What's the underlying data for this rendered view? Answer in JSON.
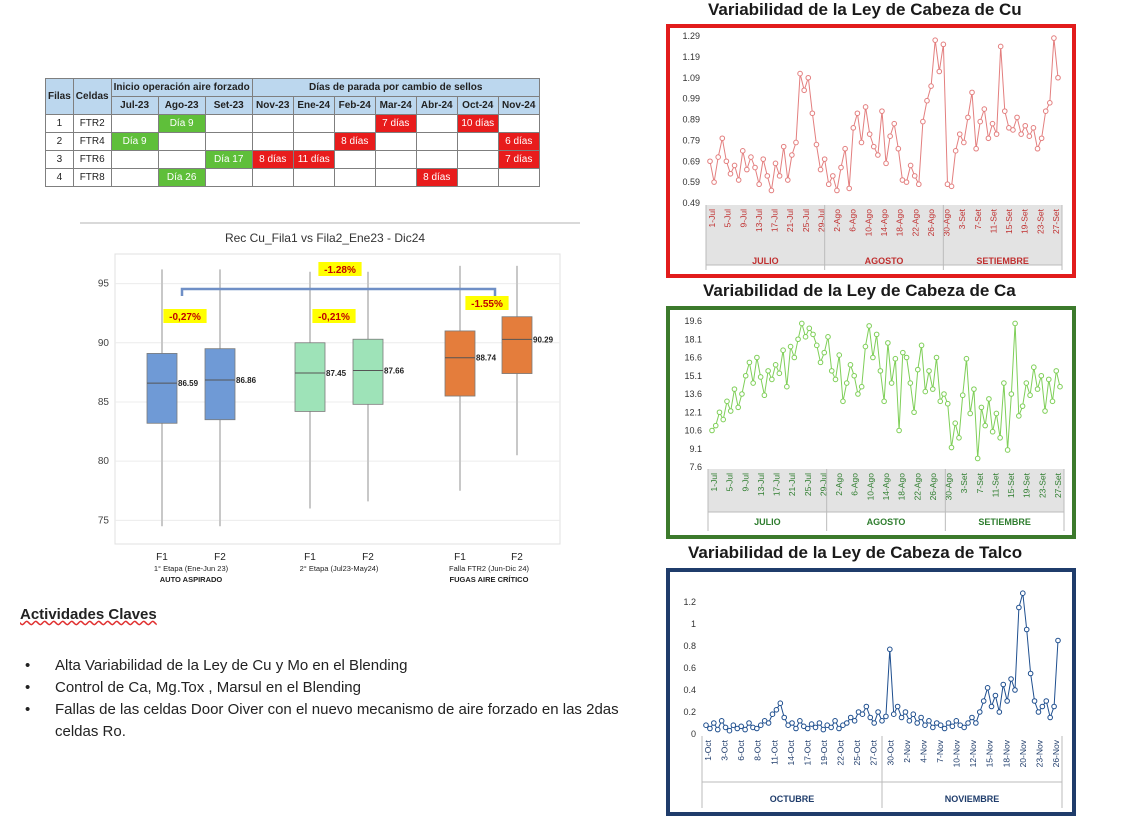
{
  "table": {
    "head1": {
      "filas": "Filas",
      "celdas": "Celdas",
      "inicio": "Inicio operación aire forzado",
      "dias": "Días de parada por cambio de sellos"
    },
    "months": [
      "Jul-23",
      "Ago-23",
      "Set-23",
      "Nov-23",
      "Ene-24",
      "Feb-24",
      "Mar-24",
      "Abr-24",
      "Oct-24",
      "Nov-24"
    ],
    "rows": [
      {
        "fila": "1",
        "celda": "FTR2",
        "cells": [
          "",
          "Día 9",
          "",
          "",
          "",
          "",
          "7 días",
          "",
          "10 días",
          ""
        ],
        "colors": [
          "",
          "g",
          "",
          "",
          "",
          "",
          "r",
          "",
          "r",
          ""
        ]
      },
      {
        "fila": "2",
        "celda": "FTR4",
        "cells": [
          "Día 9",
          "",
          "",
          "",
          "",
          "8 días",
          "",
          "",
          "",
          "6 días"
        ],
        "colors": [
          "g",
          "",
          "",
          "",
          "",
          "r",
          "",
          "",
          "",
          "r"
        ]
      },
      {
        "fila": "3",
        "celda": "FTR6",
        "cells": [
          "",
          "",
          "Día 17",
          "8 días",
          "11 días",
          "",
          "",
          "",
          "",
          "7 días"
        ],
        "colors": [
          "",
          "",
          "g",
          "r",
          "r",
          "",
          "",
          "",
          "",
          "r"
        ]
      },
      {
        "fila": "4",
        "celda": "FTR8",
        "cells": [
          "",
          "Día 26",
          "",
          "",
          "",
          "",
          "",
          "8 días",
          "",
          ""
        ],
        "colors": [
          "",
          "g",
          "",
          "",
          "",
          "",
          "",
          "r",
          "",
          ""
        ]
      }
    ]
  },
  "boxplot": {
    "title": "Rec Cu_Fila1 vs Fila2_Ene23 - Dic24",
    "yticks": [
      75,
      80,
      85,
      90,
      95
    ],
    "ylim": [
      73,
      97.5
    ],
    "groups": [
      {
        "label": "1° Etapa (Ene-Jun 23)",
        "sublabel": "AUTO ASPIRADO",
        "pct": "-0,27%"
      },
      {
        "label": "2° Etapa (Jul23-May24)",
        "sublabel": "",
        "pct": "-0,21%"
      },
      {
        "label": "Falla FTR2 (Jun-Dic 24)",
        "sublabel": "FUGAS AIRE CRÍTICO",
        "pct": "-1.55%"
      }
    ],
    "overall_pct": "-1.28%",
    "boxes": [
      {
        "x": "F1",
        "group": 0,
        "min": 74.5,
        "q1": 83.2,
        "median": 86.59,
        "q3": 89.1,
        "max": 96.2,
        "label": "86.59",
        "color": "#6f9ad6"
      },
      {
        "x": "F2",
        "group": 0,
        "min": 74.5,
        "q1": 83.5,
        "median": 86.86,
        "q3": 89.5,
        "max": 96.2,
        "label": "86.86",
        "color": "#6f9ad6"
      },
      {
        "x": "F1",
        "group": 1,
        "min": 76.0,
        "q1": 84.2,
        "median": 87.45,
        "q3": 90.0,
        "max": 96.0,
        "label": "87.45",
        "color": "#9ee3b8"
      },
      {
        "x": "F2",
        "group": 1,
        "min": 76.6,
        "q1": 84.8,
        "median": 87.66,
        "q3": 90.3,
        "max": 96.0,
        "label": "87.66",
        "color": "#9ee3b8"
      },
      {
        "x": "F1",
        "group": 2,
        "min": 77.5,
        "q1": 85.5,
        "median": 88.74,
        "q3": 91.0,
        "max": 96.5,
        "label": "88.74",
        "color": "#e47d3c"
      },
      {
        "x": "F2",
        "group": 2,
        "min": 80.5,
        "q1": 87.4,
        "median": 90.29,
        "q3": 92.2,
        "max": 96.5,
        "label": "90.29",
        "color": "#e47d3c"
      }
    ]
  },
  "activities": {
    "title": "Actividades Claves",
    "items": [
      "Alta Variabilidad de la Ley de Cu y Mo en el Blending",
      "Control de  Ca, Mg.Tox , Marsul  en el Blending",
      " Fallas de las celdas  Door Oiver con el nuevo  mecanismo de aire forzado en las 2das celdas Ro."
    ]
  },
  "chart_data": [
    {
      "type": "line",
      "title": "Variabilidad de la Ley de Cabeza de Cu",
      "ylim": [
        0.49,
        1.29
      ],
      "yticks": [
        0.49,
        0.59,
        0.69,
        0.79,
        0.89,
        0.99,
        1.09,
        1.19,
        1.29
      ],
      "xticks": [
        "1-Jul",
        "5-Jul",
        "9-Jul",
        "13-Jul",
        "17-Jul",
        "21-Jul",
        "25-Jul",
        "29-Jul",
        "2-Ago",
        "6-Ago",
        "10-Ago",
        "14-Ago",
        "18-Ago",
        "22-Ago",
        "26-Ago",
        "30-Ago",
        "3-Set",
        "7-Set",
        "11-Set",
        "15-Set",
        "19-Set",
        "23-Set",
        "27-Set"
      ],
      "groups": [
        "JULIO",
        "AGOSTO",
        "SETIEMBRE"
      ],
      "color": "#e37f7f",
      "values": [
        0.69,
        0.59,
        0.71,
        0.8,
        0.69,
        0.63,
        0.67,
        0.6,
        0.74,
        0.65,
        0.71,
        0.66,
        0.58,
        0.7,
        0.62,
        0.55,
        0.68,
        0.62,
        0.76,
        0.6,
        0.72,
        0.78,
        1.11,
        1.03,
        1.09,
        0.92,
        0.77,
        0.65,
        0.7,
        0.58,
        0.62,
        0.55,
        0.66,
        0.75,
        0.56,
        0.85,
        0.92,
        0.78,
        0.95,
        0.82,
        0.76,
        0.72,
        0.93,
        0.68,
        0.81,
        0.87,
        0.75,
        0.6,
        0.59,
        0.67,
        0.62,
        0.58,
        0.88,
        0.98,
        1.05,
        1.27,
        1.12,
        1.25,
        0.58,
        0.57,
        0.74,
        0.82,
        0.78,
        0.9,
        1.02,
        0.75,
        0.88,
        0.94,
        0.8,
        0.87,
        0.82,
        1.24,
        0.93,
        0.85,
        0.84,
        0.9,
        0.82,
        0.86,
        0.81,
        0.85,
        0.75,
        0.8,
        0.93,
        0.97,
        1.28,
        1.09
      ],
      "border": "#e21c1c",
      "tickcolor": "#c03030"
    },
    {
      "type": "line",
      "title": "Variabilidad de la Ley de Cabeza de Ca",
      "ylim": [
        7.6,
        19.6
      ],
      "yticks": [
        7.6,
        9.1,
        10.6,
        12.1,
        13.6,
        15.1,
        16.6,
        18.1,
        19.6
      ],
      "xticks": [
        "1-Jul",
        "5-Jul",
        "9-Jul",
        "13-Jul",
        "17-Jul",
        "21-Jul",
        "25-Jul",
        "29-Jul",
        "2-Ago",
        "6-Ago",
        "10-Ago",
        "14-Ago",
        "18-Ago",
        "22-Ago",
        "26-Ago",
        "30-Ago",
        "3-Set",
        "7-Set",
        "11-Set",
        "15-Set",
        "19-Set",
        "23-Set",
        "27-Set"
      ],
      "groups": [
        "JULIO",
        "AGOSTO",
        "SETIEMBRE"
      ],
      "color": "#7fcf58",
      "values": [
        10.6,
        11.0,
        12.1,
        11.5,
        13.0,
        12.2,
        14.0,
        12.5,
        13.6,
        15.1,
        16.2,
        14.5,
        16.6,
        15.0,
        13.5,
        15.5,
        14.8,
        16.0,
        15.3,
        17.2,
        14.2,
        17.5,
        16.6,
        18.1,
        19.4,
        18.3,
        19.0,
        18.5,
        17.6,
        16.2,
        17.0,
        18.3,
        15.5,
        14.8,
        16.8,
        13.0,
        14.5,
        16.0,
        15.1,
        13.6,
        14.2,
        17.5,
        19.2,
        16.6,
        18.5,
        15.5,
        13.0,
        17.8,
        14.5,
        16.5,
        10.6,
        17.0,
        16.6,
        14.5,
        12.1,
        15.6,
        17.6,
        13.8,
        15.5,
        14.0,
        16.6,
        13.0,
        13.6,
        12.8,
        9.2,
        11.2,
        10.0,
        13.5,
        16.5,
        12.0,
        14.0,
        8.3,
        12.5,
        11.0,
        13.2,
        10.5,
        12.0,
        10.0,
        14.5,
        9.0,
        13.6,
        19.4,
        11.8,
        12.6,
        14.5,
        13.5,
        15.8,
        14.0,
        15.1,
        12.2,
        14.8,
        13.0,
        15.5,
        14.2
      ],
      "border": "#3c7a2c",
      "tickcolor": "#2e7d2e"
    },
    {
      "type": "line",
      "title": "Variabilidad de la Ley de Cabeza de Talco",
      "ylim": [
        0,
        1.3
      ],
      "yticks": [
        0,
        0.2,
        0.4,
        0.6,
        0.8,
        1,
        1.2
      ],
      "xticks": [
        "1-Oct",
        "3-Oct",
        "6-Oct",
        "8-Oct",
        "11-Oct",
        "14-Oct",
        "17-Oct",
        "19-Oct",
        "22-Oct",
        "25-Oct",
        "27-Oct",
        "30-Oct",
        "2-Nov",
        "4-Nov",
        "7-Nov",
        "10-Nov",
        "12-Nov",
        "15-Nov",
        "18-Nov",
        "20-Nov",
        "23-Nov",
        "26-Nov"
      ],
      "groups": [
        "OCTUBRE",
        "NOVIEMBRE"
      ],
      "color": "#1f4f8f",
      "values": [
        0.08,
        0.05,
        0.1,
        0.04,
        0.12,
        0.06,
        0.03,
        0.08,
        0.05,
        0.07,
        0.04,
        0.1,
        0.06,
        0.05,
        0.08,
        0.12,
        0.1,
        0.18,
        0.22,
        0.28,
        0.15,
        0.08,
        0.1,
        0.05,
        0.12,
        0.07,
        0.05,
        0.09,
        0.06,
        0.1,
        0.04,
        0.08,
        0.06,
        0.12,
        0.05,
        0.08,
        0.1,
        0.15,
        0.12,
        0.2,
        0.18,
        0.25,
        0.15,
        0.1,
        0.2,
        0.12,
        0.16,
        0.77,
        0.18,
        0.25,
        0.15,
        0.2,
        0.12,
        0.18,
        0.1,
        0.15,
        0.08,
        0.12,
        0.06,
        0.1,
        0.08,
        0.05,
        0.1,
        0.07,
        0.12,
        0.08,
        0.06,
        0.1,
        0.15,
        0.1,
        0.2,
        0.3,
        0.42,
        0.25,
        0.35,
        0.2,
        0.45,
        0.3,
        0.5,
        0.4,
        1.15,
        1.28,
        0.95,
        0.55,
        0.3,
        0.2,
        0.25,
        0.3,
        0.15,
        0.25,
        0.85
      ],
      "border": "#1f3c6b",
      "tickcolor": "#1f3c6b"
    }
  ]
}
